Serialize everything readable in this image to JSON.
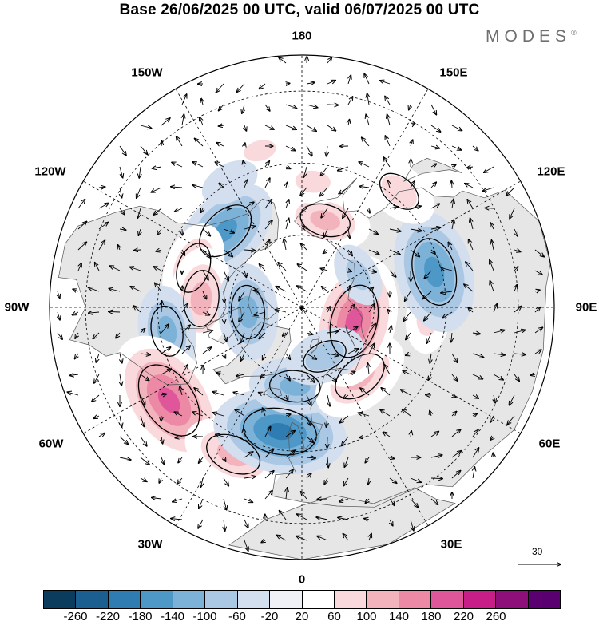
{
  "title": "Base 26/06/2025 00 UTC, valid 06/07/2025 00 UTC",
  "logo": {
    "text": "MODES",
    "mark": "®"
  },
  "longitude_labels": {
    "lon_180": "180",
    "lon_150e": "150E",
    "lon_120e": "120E",
    "lon_90e": "90E",
    "lon_60e": "60E",
    "lon_30e": "30E",
    "lon_0": "0",
    "lon_30w": "30W",
    "lon_60w": "60W",
    "lon_90w": "90W",
    "lon_120w": "120W",
    "lon_150w": "150W"
  },
  "wind_reference": {
    "label": "30"
  },
  "colorbar": {
    "colors": [
      "#0b3c5d",
      "#1a5f8f",
      "#2f7cb3",
      "#4e98c8",
      "#7db2d8",
      "#aac8e4",
      "#d3dfee",
      "#f0f0f7",
      "#ffffff",
      "#f9d9dc",
      "#f3b3bd",
      "#ec8aa6",
      "#e0569a",
      "#c81e88",
      "#8e0f7a",
      "#5a0070"
    ],
    "ticks": [
      "-260",
      "-220",
      "-180",
      "-140",
      "-100",
      "-60",
      "-20",
      "20",
      "60",
      "100",
      "140",
      "180",
      "220",
      "260"
    ]
  },
  "anomaly_centers": [
    {
      "lon": -135,
      "lat": 60,
      "value": -160
    },
    {
      "lon": -110,
      "lat": 58,
      "value": 120
    },
    {
      "lon": -95,
      "lat": 62,
      "value": 140
    },
    {
      "lon": -85,
      "lat": 75,
      "value": -130
    },
    {
      "lon": -80,
      "lat": 52,
      "value": -120
    },
    {
      "lon": -55,
      "lat": 45,
      "value": 220
    },
    {
      "lon": -25,
      "lat": 45,
      "value": 140
    },
    {
      "lon": -10,
      "lat": 55,
      "value": -200
    },
    {
      "lon": -5,
      "lat": 68,
      "value": -120
    },
    {
      "lon": 40,
      "lat": 65,
      "value": 140
    },
    {
      "lon": 75,
      "lat": 75,
      "value": 200
    },
    {
      "lon": 85,
      "lat": 55,
      "value": 80
    },
    {
      "lon": 105,
      "lat": 52,
      "value": -180
    },
    {
      "lon": 140,
      "lat": 48,
      "value": 100
    },
    {
      "lon": 165,
      "lat": 65,
      "value": 120
    },
    {
      "lon": 175,
      "lat": 55,
      "value": 80
    },
    {
      "lon": -165,
      "lat": 45,
      "value": 70
    },
    {
      "lon": -150,
      "lat": 50,
      "value": -60
    },
    {
      "lon": 25,
      "lat": 75,
      "value": -100
    },
    {
      "lon": 120,
      "lat": 72,
      "value": -70
    }
  ]
}
